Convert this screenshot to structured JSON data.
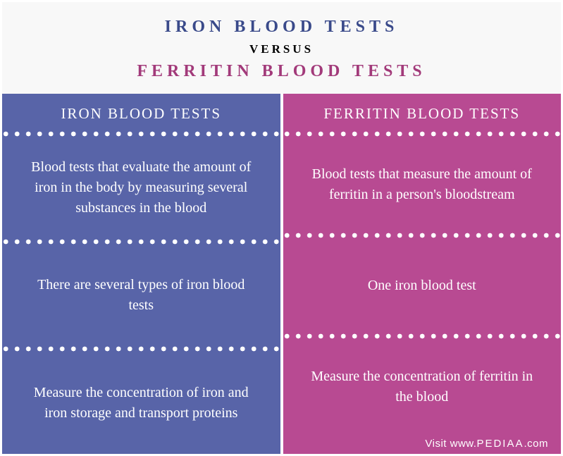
{
  "background_color": "#f8f8f8",
  "header": {
    "line1": "IRON BLOOD TESTS",
    "line1_color": "#3a4a8a",
    "versus": "VERSUS",
    "versus_color": "#000000",
    "line2": "FERRITIN BLOOD TESTS",
    "line2_color": "#a23a7a"
  },
  "left": {
    "bg_color": "#5864a8",
    "header": "IRON BLOOD TESTS",
    "cells": [
      "Blood tests that evaluate the amount of iron in the body by measuring several substances in the blood",
      "There are several types of iron blood tests",
      "Measure the concentration of iron and iron storage and transport proteins"
    ]
  },
  "right": {
    "bg_color": "#b84a92",
    "header": "FERRITIN BLOOD TESTS",
    "cells": [
      "Blood tests that measure the amount of ferritin in a person's bloodstream",
      "One iron blood test",
      "Measure the concentration of ferritin in the blood"
    ]
  },
  "divider": {
    "dot_color": "#ffffff",
    "dot_size": 8,
    "dot_gap": 16
  },
  "footer": {
    "text_prefix": "Visit www.",
    "brand": "PEDIAA",
    "text_suffix": ".com",
    "bg_color": "#b84a92"
  }
}
